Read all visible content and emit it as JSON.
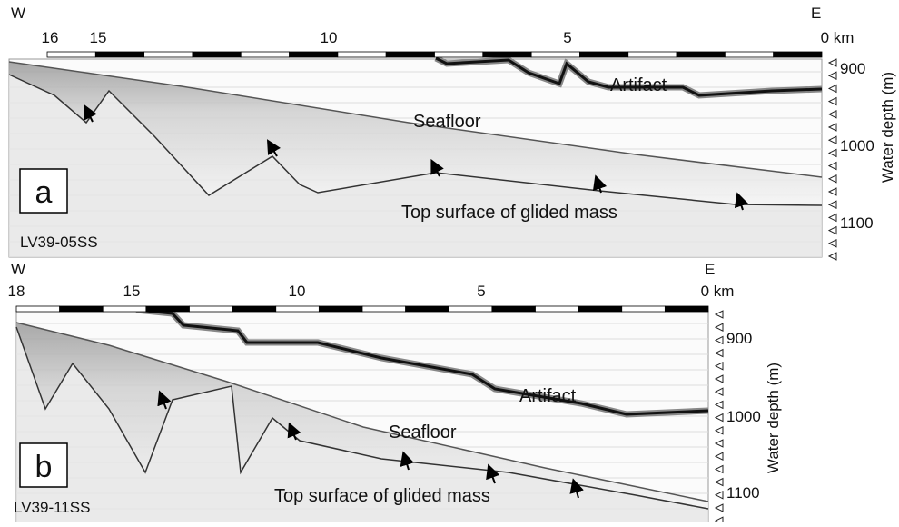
{
  "panels": [
    {
      "label": "a",
      "west": "W",
      "east": "E",
      "distance_ticks": [
        "16",
        "15",
        "10",
        "5",
        "0 km"
      ],
      "depth_ticks": [
        "900",
        "1000",
        "1100"
      ],
      "depth_axis_title": "Water depth (m)",
      "profile_id": "LV39-05SS",
      "annotations": [
        "Artifact",
        "Seafloor",
        "Top surface of glided mass"
      ]
    },
    {
      "label": "b",
      "west": "W",
      "east": "E",
      "distance_ticks": [
        "18",
        "15",
        "10",
        "5",
        "0 km"
      ],
      "depth_ticks": [
        "900",
        "1000",
        "1100"
      ],
      "depth_axis_title": "Water depth (m)",
      "profile_id": "LV39-11SS",
      "annotations": [
        "Artifact",
        "Seafloor",
        "Top surface of glided mass"
      ]
    }
  ]
}
